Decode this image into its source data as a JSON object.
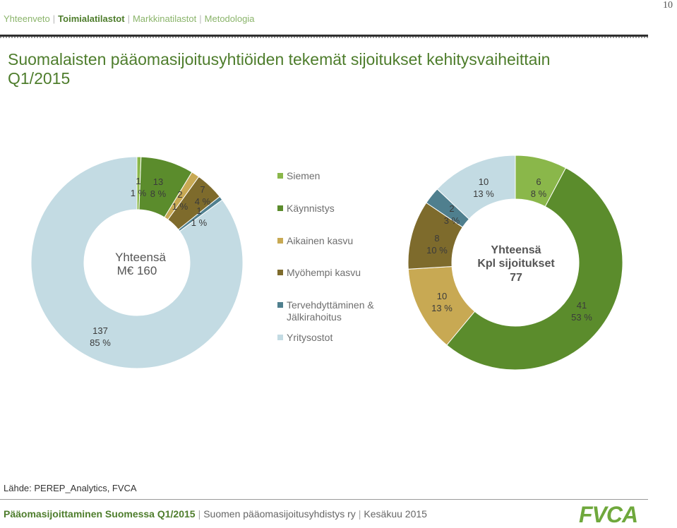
{
  "page_number": "10",
  "nav": {
    "items": [
      "Yhteenveto",
      "Toimialatilastot",
      "Markkinatilastot",
      "Metodologia"
    ],
    "active_index": 1
  },
  "title": "Suomalaisten pääomasijoitusyhtiöiden tekemät sijoitukset kehitysvaiheittain Q1/2015",
  "chart_data": [
    {
      "type": "pie",
      "variant": "donut",
      "center_label": [
        "Yhteensä",
        "M€ 160"
      ],
      "categories": [
        "Siemen",
        "Käynnistys",
        "Aikainen kasvu",
        "Myöhempi kasvu",
        "Tervehdyttäminen & Jälkirahoitus",
        "Yritysostot"
      ],
      "values": [
        1,
        13,
        2,
        7,
        1,
        137
      ],
      "value_labels": [
        "1",
        "13",
        "2",
        "7",
        "1",
        "137"
      ],
      "percent_labels": [
        "1 %",
        "8 %",
        "1 %",
        "4 %",
        "1 %",
        "85 %"
      ]
    },
    {
      "type": "pie",
      "variant": "donut",
      "center_label": [
        "Yhteensä",
        "Kpl sijoitukset",
        "77"
      ],
      "categories": [
        "Siemen",
        "Käynnistys",
        "Aikainen kasvu",
        "Myöhempi kasvu",
        "Tervehdyttäminen & Jälkirahoitus",
        "Yritysostot"
      ],
      "values": [
        6,
        41,
        10,
        8,
        2,
        10
      ],
      "value_labels": [
        "6",
        "41",
        "10",
        "8",
        "2",
        "10"
      ],
      "percent_labels": [
        "8 %",
        "53 %",
        "13 %",
        "10 %",
        "3 %",
        "13 %"
      ]
    }
  ],
  "legend": {
    "items": [
      {
        "label": "Siemen",
        "color": "#8ab74a"
      },
      {
        "label": "Käynnistys",
        "color": "#5b8c2c"
      },
      {
        "label": "Aikainen kasvu",
        "color": "#c8a953"
      },
      {
        "label": "Myöhempi kasvu",
        "color": "#7e6b2c"
      },
      {
        "label": "Tervehdyttäminen & Jälkirahoitus",
        "color": "#4f7f8e"
      },
      {
        "label": "Yritysostot",
        "color": "#c3dbe3"
      }
    ]
  },
  "source": "Lähde: PEREP_Analytics, FVCA",
  "footer": {
    "publication": "Pääomasijoittaminen Suomessa Q1/2015",
    "organization": "Suomen pääomasijoitusyhdistys ry",
    "date": "Kesäkuu 2015"
  },
  "logo_text": "FVCA"
}
